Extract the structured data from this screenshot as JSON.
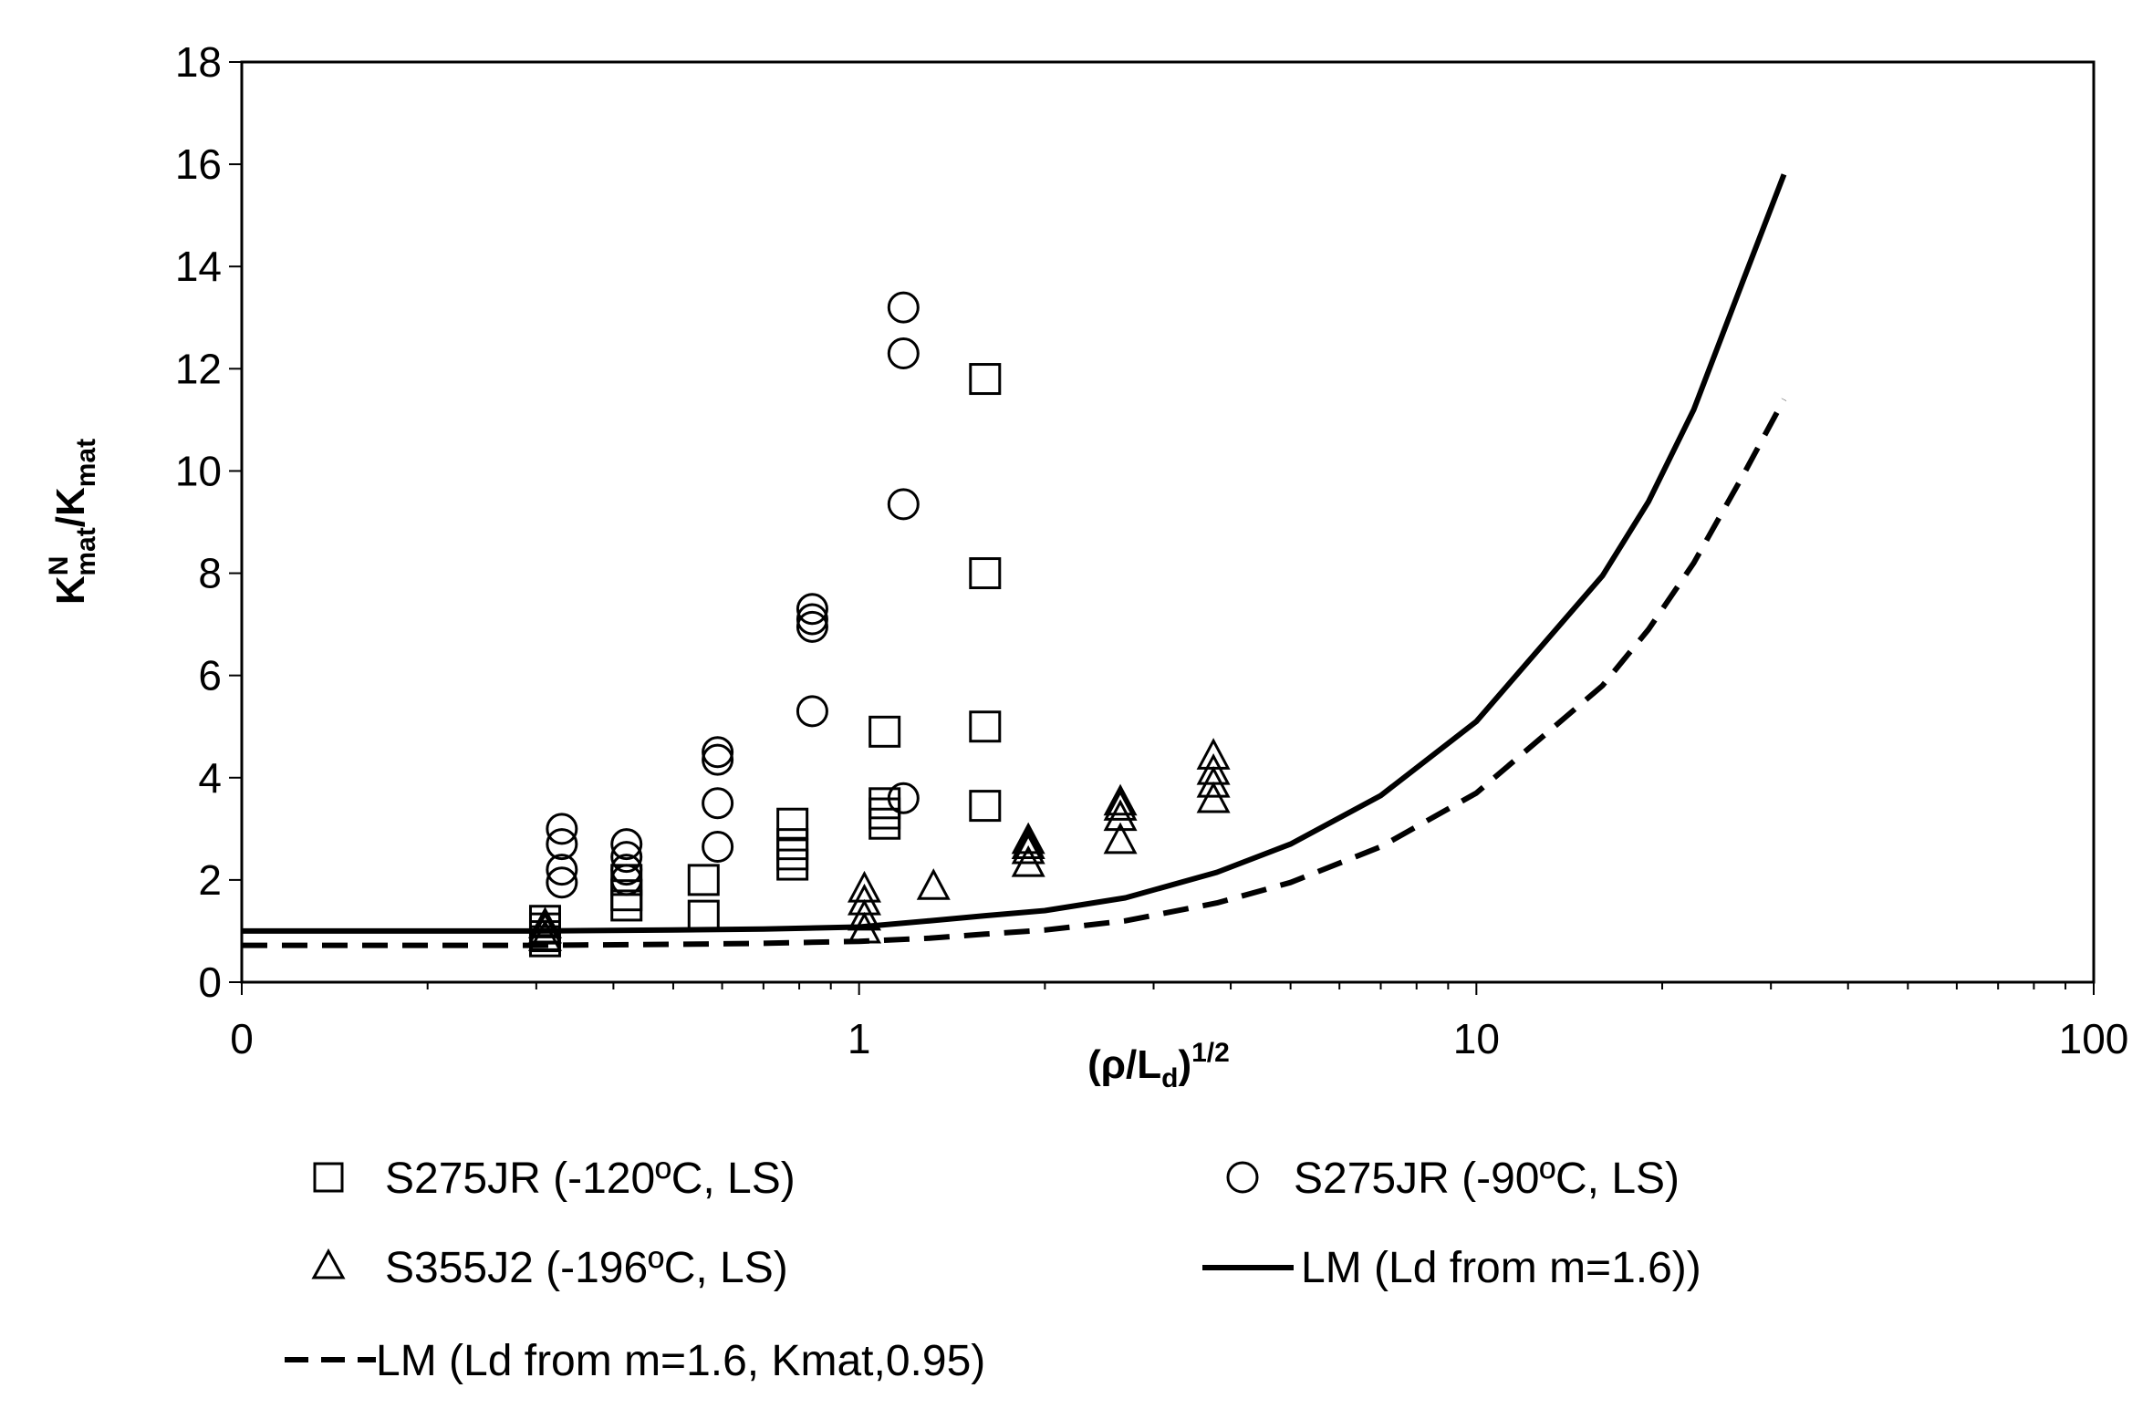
{
  "chart_data": {
    "type": "scatter",
    "title": "",
    "xlabel": {
      "main": "(ρ/L",
      "sub": "d",
      "close": ")",
      "sup": "1/2"
    },
    "ylabel": {
      "k": "K",
      "sup": "N",
      "sub1": "mat",
      "slash": "/K",
      "sub2": "mat"
    },
    "x_scale": "log",
    "xlim": [
      0.1,
      100
    ],
    "ylim": [
      0,
      18
    ],
    "x_ticks": [
      0.1,
      1,
      10,
      100
    ],
    "x_tick_labels": [
      "0",
      "1",
      "10",
      "100"
    ],
    "y_ticks": [
      0,
      2,
      4,
      6,
      8,
      10,
      12,
      14,
      16,
      18
    ],
    "y_tick_labels": [
      "0",
      "2",
      "4",
      "6",
      "8",
      "10",
      "12",
      "14",
      "16",
      "18"
    ],
    "grid": false,
    "series": [
      {
        "name": "S275JR (-120ºC, LS)",
        "marker": "square",
        "points": [
          [
            0.31,
            0.8
          ],
          [
            0.31,
            0.9
          ],
          [
            0.31,
            1.05
          ],
          [
            0.31,
            1.2
          ],
          [
            0.42,
            1.5
          ],
          [
            0.42,
            1.7
          ],
          [
            0.42,
            2.0
          ],
          [
            0.56,
            1.3
          ],
          [
            0.56,
            2.0
          ],
          [
            0.78,
            2.3
          ],
          [
            0.78,
            2.5
          ],
          [
            0.78,
            2.7
          ],
          [
            0.78,
            3.1
          ],
          [
            1.1,
            3.1
          ],
          [
            1.1,
            3.3
          ],
          [
            1.1,
            3.5
          ],
          [
            1.1,
            4.9
          ],
          [
            1.6,
            3.45
          ],
          [
            1.6,
            5.0
          ],
          [
            1.6,
            8.0
          ],
          [
            1.6,
            11.8
          ]
        ]
      },
      {
        "name": "S275JR (-90ºC, LS)",
        "marker": "circle",
        "points": [
          [
            0.33,
            1.95
          ],
          [
            0.33,
            2.2
          ],
          [
            0.33,
            2.7
          ],
          [
            0.33,
            3.0
          ],
          [
            0.42,
            2.0
          ],
          [
            0.42,
            2.2
          ],
          [
            0.42,
            2.45
          ],
          [
            0.42,
            2.7
          ],
          [
            0.59,
            2.65
          ],
          [
            0.59,
            3.5
          ],
          [
            0.59,
            4.35
          ],
          [
            0.59,
            4.5
          ],
          [
            0.84,
            5.3
          ],
          [
            0.84,
            6.95
          ],
          [
            0.84,
            7.1
          ],
          [
            0.84,
            7.3
          ],
          [
            1.18,
            3.6
          ],
          [
            1.18,
            9.35
          ],
          [
            1.18,
            12.3
          ],
          [
            1.18,
            13.2
          ]
        ]
      },
      {
        "name": "S355J2 (-196ºC, LS)",
        "marker": "triangle",
        "points": [
          [
            0.31,
            0.85
          ],
          [
            0.31,
            1.0
          ],
          [
            0.31,
            1.1
          ],
          [
            1.02,
            1.0
          ],
          [
            1.02,
            1.25
          ],
          [
            1.02,
            1.55
          ],
          [
            1.02,
            1.8
          ],
          [
            1.32,
            1.85
          ],
          [
            1.88,
            2.3
          ],
          [
            1.88,
            2.55
          ],
          [
            1.88,
            2.65
          ],
          [
            1.88,
            2.75
          ],
          [
            2.65,
            2.75
          ],
          [
            2.65,
            3.2
          ],
          [
            2.65,
            3.4
          ],
          [
            2.65,
            3.5
          ],
          [
            3.75,
            3.55
          ],
          [
            3.75,
            3.85
          ],
          [
            3.75,
            4.1
          ],
          [
            3.75,
            4.4
          ]
        ]
      },
      {
        "name": "LM (Ld from m=1.6))",
        "line": "solid",
        "points": [
          [
            0.1,
            1.0
          ],
          [
            0.3,
            1.0
          ],
          [
            0.5,
            1.02
          ],
          [
            0.7,
            1.04
          ],
          [
            1.0,
            1.08
          ],
          [
            1.3,
            1.2
          ],
          [
            1.6,
            1.3
          ],
          [
            2.0,
            1.4
          ],
          [
            2.7,
            1.65
          ],
          [
            3.8,
            2.15
          ],
          [
            5.0,
            2.7
          ],
          [
            7.0,
            3.65
          ],
          [
            10.0,
            5.1
          ],
          [
            16.0,
            7.95
          ],
          [
            19.0,
            9.4
          ],
          [
            22.5,
            11.2
          ],
          [
            27.0,
            13.7
          ],
          [
            31.5,
            15.8
          ]
        ]
      },
      {
        "name": "LM (Ld from m=1.6, Kmat,0.95)",
        "line": "dashed",
        "points": [
          [
            0.1,
            0.72
          ],
          [
            0.3,
            0.72
          ],
          [
            0.5,
            0.74
          ],
          [
            0.7,
            0.76
          ],
          [
            1.0,
            0.8
          ],
          [
            1.3,
            0.86
          ],
          [
            1.6,
            0.94
          ],
          [
            2.0,
            1.02
          ],
          [
            2.7,
            1.2
          ],
          [
            3.8,
            1.55
          ],
          [
            5.0,
            1.95
          ],
          [
            7.0,
            2.65
          ],
          [
            10.0,
            3.7
          ],
          [
            16.0,
            5.8
          ],
          [
            19.0,
            6.9
          ],
          [
            22.5,
            8.2
          ],
          [
            27.0,
            9.9
          ],
          [
            31.5,
            11.4
          ]
        ]
      }
    ],
    "legend": {
      "placement": "bottom",
      "entries": [
        "S275JR (-120ºC, LS)",
        "S275JR (-90ºC, LS)",
        "S355J2 (-196ºC, LS)",
        "LM (Ld from m=1.6))",
        "LM (Ld from m=1.6, Kmat,0.95)"
      ]
    }
  }
}
